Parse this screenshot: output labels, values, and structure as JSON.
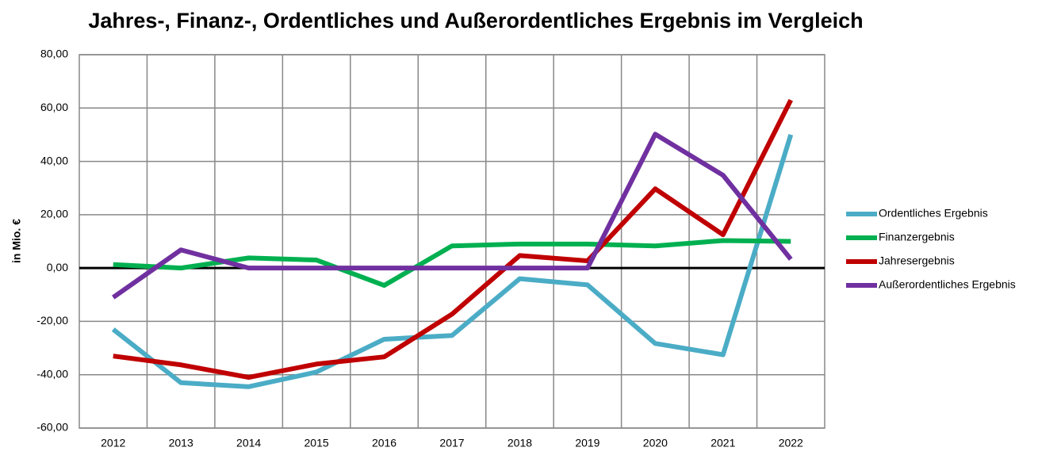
{
  "chart_data": {
    "type": "line",
    "title": "Jahres-, Finanz-, Ordentliches und Außerordentliches Ergebnis im Vergleich",
    "y_label": "in Mio. €",
    "categories": [
      "2012",
      "2013",
      "2014",
      "2015",
      "2016",
      "2017",
      "2018",
      "2019",
      "2020",
      "2021",
      "2022"
    ],
    "series": [
      {
        "name": "Ordentliches Ergebnis",
        "color": "#4bacc6",
        "values": [
          -23,
          -43,
          -44.5,
          -39,
          -26.7,
          -25.3,
          -4,
          -6.3,
          -28.3,
          -32.5,
          50
        ]
      },
      {
        "name": "Finanzergebnis",
        "color": "#00b050",
        "values": [
          1.3,
          0,
          3.8,
          3,
          -6.5,
          8.3,
          9,
          9,
          8.3,
          10.3,
          10
        ]
      },
      {
        "name": "Jahresergebnis",
        "color": "#c00000",
        "values": [
          -33,
          -36.3,
          -41,
          -36,
          -33.3,
          -17.3,
          4.7,
          2.7,
          29.7,
          12.5,
          63
        ]
      },
      {
        "name": "Außerordentliches Ergebnis",
        "color": "#7030a0",
        "values": [
          -11,
          6.8,
          0,
          0,
          0,
          0,
          0,
          0,
          50.2,
          34.8,
          3.3
        ]
      }
    ],
    "ylim": [
      -60,
      80
    ],
    "yticks": [
      {
        "value": -60,
        "label": "-60,00"
      },
      {
        "value": -40,
        "label": "-40,00"
      },
      {
        "value": -20,
        "label": "-20,00"
      },
      {
        "value": 0,
        "label": "0,00"
      },
      {
        "value": 20,
        "label": "20,00"
      },
      {
        "value": 40,
        "label": "40,00"
      },
      {
        "value": 60,
        "label": "60,00"
      },
      {
        "value": 80,
        "label": "80,00"
      }
    ],
    "grid": true,
    "legend": "right"
  }
}
